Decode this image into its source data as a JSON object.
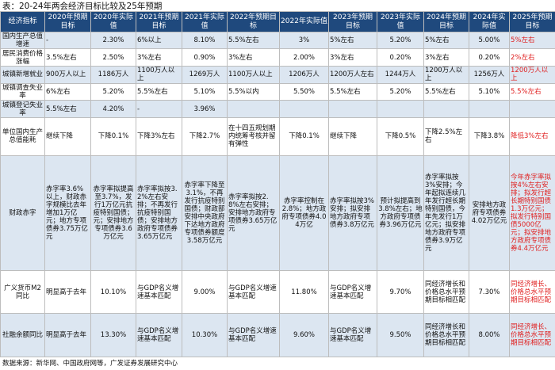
{
  "title": "表：20-24年两会经济目标比较及25年预期",
  "source": "数据来源：新华网、中国政府网等，广发证券发展研究中心",
  "colors": {
    "header_bg": "#1f497d",
    "header_text": "#ffffff",
    "stripe": "#dce6f1",
    "highlight": "#e02020"
  },
  "headers": [
    "经济指标",
    "2020年预期目标",
    "2020年实际值",
    "2021年预期目标",
    "2021年实际值",
    "2022年预期目标",
    "2022年实际值",
    "2023年预期目标",
    "2023年实际值",
    "2024年预期目标",
    "2024年实际值",
    "2025年预期目标"
  ],
  "rows": [
    {
      "label": "国内生产总值增速",
      "cells": [
        "-",
        "2.30%",
        "6%以上",
        "8.10%",
        "5.5%左右",
        "3%",
        "5%左右",
        "5.20%",
        "5%左右",
        "5.00%",
        "5%左右"
      ]
    },
    {
      "label": "居民消费价格涨幅",
      "cells": [
        "3.5%左右",
        "2.50%",
        "3%左右",
        "0.90%",
        "3%左右",
        "2.00%",
        "3%左右",
        "0.20%",
        "3%左右",
        "0.20%",
        "2%左右"
      ]
    },
    {
      "label": "城镇新增就业",
      "cells": [
        "900万人以上",
        "1186万人",
        "1100万人以上",
        "1269万人",
        "1100万人以上",
        "1206万人",
        "1200万人左右",
        "1244万人",
        "1200万人以上",
        "1256万人",
        "1200万人以上"
      ]
    },
    {
      "label": "城镇调查失业率",
      "cells": [
        "6%左右",
        "5.20%",
        "5.5%左右",
        "5.10%",
        "5.5%以内",
        "5.50%",
        "5.5%左右",
        "5.20%",
        "5.5%左右",
        "5.10%",
        "5.5%左右"
      ]
    },
    {
      "label": "城镇登记失业率",
      "cells": [
        "5.5%左右",
        "4.20%",
        "-",
        "3.96%",
        "",
        "",
        "",
        "",
        "",
        "",
        ""
      ]
    },
    {
      "label": "单位国内生产总值能耗",
      "cells": [
        "继续下降",
        "下降0.1%",
        "下降3%左右",
        "下降2.7%",
        "在十四五规划期内统筹考核并留有弹性",
        "下降0.1%",
        "继续下降",
        "下降0.5%",
        "下降2.5%左右",
        "下降3.8%",
        "降低3%左右"
      ]
    },
    {
      "label": "财政赤字",
      "cells": [
        "赤字率3.6%以上，财政赤字规模比去年增加1万亿元；地方专项债券3.75万亿元",
        "赤字率拟提高至3.7%，发行1万亿元抗疫特别国债；元；安排地方专项债券3.6万亿元",
        "赤字率拟按3.2%左右安排；不再发行抗疫特别国债；安排地方政府专项债券3.65万亿元",
        "赤字率下降至3.1%，不再发行抗疫特别国债；财政部安排中央政府下达地方政府专项债券额度3.58万亿元",
        "赤字率拟按2.8%左右安排；安排地方政府专项债券3.65万亿元",
        "赤字率控制在2.8%；地方政府专项债券4.04万亿",
        "赤字率拟按3%安排；拟安排地方政府专项债券3.8万亿元",
        "预计拟提高到3.8%左右；地方政府专项债券3.96万亿元",
        "赤字率拟按3%安排；今年起拟连续几年发行超长期特别国债，今年先发行1万亿元；拟安排地方政府专项债券3.9万亿元",
        "安排地方政府专项债券4.02万亿元",
        "今年赤字率拟按4%左右安排；拟发行超长期特别国债1.3万亿元；拟发行特别国债5000亿元；拟安排地方政府专项债券4.4万亿元"
      ]
    },
    {
      "label": "广义货币M2同比",
      "cells": [
        "明显高于去年",
        "10.10%",
        "与GDP名义增速基本匹配",
        "9.00%",
        "与GDP名义增速基本匹配",
        "11.80%",
        "与GDP名义增速基本匹配",
        "9.70%",
        "同经济增长和价格总水平预期目标相匹配",
        "7.30%",
        "同经济增长、价格总水平预期目标相匹配"
      ]
    },
    {
      "label": "社融余额同比",
      "cells": [
        "明显高于去年",
        "13.30%",
        "与GDP名义增速基本匹配",
        "10.30%",
        "与GDP名义增速基本匹配",
        "9.60%",
        "与GDP名义增速基本匹配",
        "9.50%",
        "同经济增长和价格总水平预期目标相匹配",
        "8.00%",
        "同经济增长、价格总水平预期目标相匹配"
      ]
    }
  ]
}
